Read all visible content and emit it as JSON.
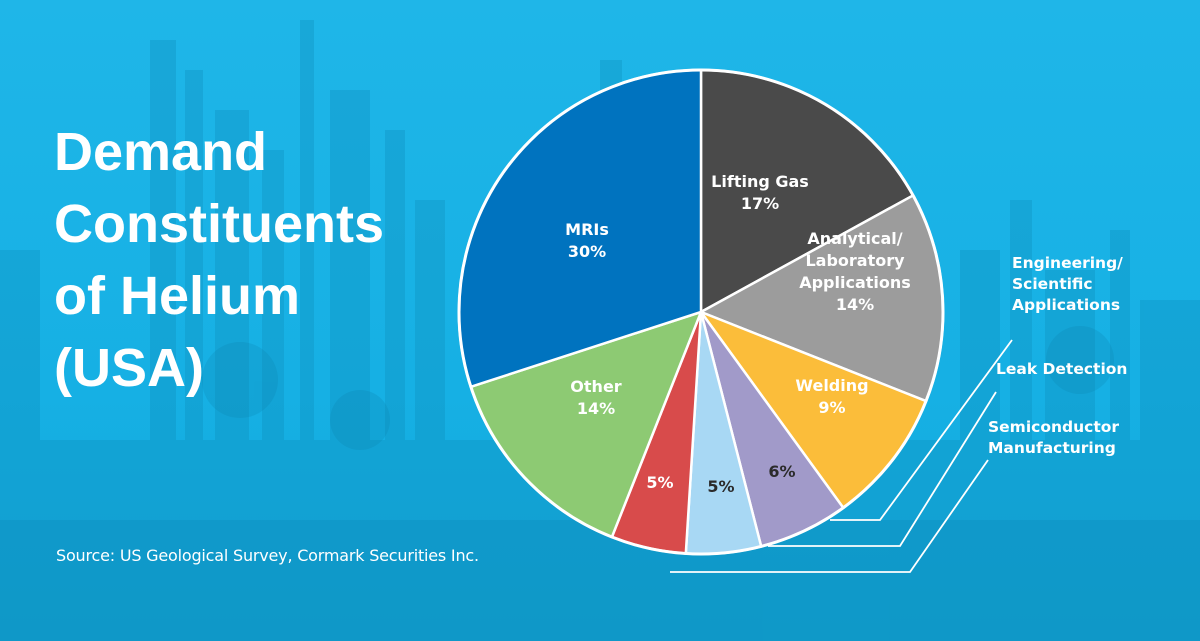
{
  "title_lines": [
    "Demand",
    "Constituents",
    "of Helium",
    "(USA)"
  ],
  "source": "Source: US Geological Survey, Cormark Securities Inc.",
  "colors": {
    "background": "#19b2e6",
    "lifting_gas": "#4a4a4a",
    "analytical": "#9c9c9c",
    "welding": "#fbbd3a",
    "engineering": "#a19ac9",
    "leak_detection": "#a8d8f4",
    "semiconductor": "#d84b4b",
    "other": "#8dca73",
    "mris": "#0073bf"
  },
  "chart_data": {
    "type": "pie",
    "title": "Demand Constituents of Helium (USA)",
    "start": "12 o'clock, clockwise",
    "slices": [
      {
        "key": "lifting_gas",
        "name": "Lifting Gas",
        "value": 17,
        "label_lines": [
          "Lifting Gas",
          "17%"
        ],
        "label_color": "#ffffff",
        "callout": false
      },
      {
        "key": "analytical",
        "name": "Analytical/ Laboratory Applications",
        "value": 14,
        "label_lines": [
          "Analytical/",
          "Laboratory",
          "Applications",
          "14%"
        ],
        "label_color": "#ffffff",
        "callout": false
      },
      {
        "key": "welding",
        "name": "Welding",
        "value": 9,
        "label_lines": [
          "Welding",
          "9%"
        ],
        "label_color": "#ffffff",
        "callout": false
      },
      {
        "key": "engineering",
        "name": "Engineering/ Scientific Applications",
        "value": 6,
        "label_lines": [
          "6%"
        ],
        "label_color": "#2b2b2b",
        "callout": true,
        "callout_lines": [
          "Engineering/",
          "Scientific",
          "Applications"
        ]
      },
      {
        "key": "leak_detection",
        "name": "Leak Detection",
        "value": 5,
        "label_lines": [
          "5%"
        ],
        "label_color": "#2b2b2b",
        "callout": true,
        "callout_lines": [
          "Leak Detection"
        ]
      },
      {
        "key": "semiconductor",
        "name": "Semiconductor Manufacturing",
        "value": 5,
        "label_lines": [
          "5%"
        ],
        "label_color": "#ffffff",
        "callout": true,
        "callout_lines": [
          "Semiconductor",
          "Manufacturing"
        ]
      },
      {
        "key": "other",
        "name": "Other",
        "value": 14,
        "label_lines": [
          "Other",
          "14%"
        ],
        "label_color": "#ffffff",
        "callout": false
      },
      {
        "key": "mris",
        "name": "MRIs",
        "value": 30,
        "label_lines": [
          "MRIs",
          "30%"
        ],
        "label_color": "#ffffff",
        "callout": false
      }
    ]
  }
}
